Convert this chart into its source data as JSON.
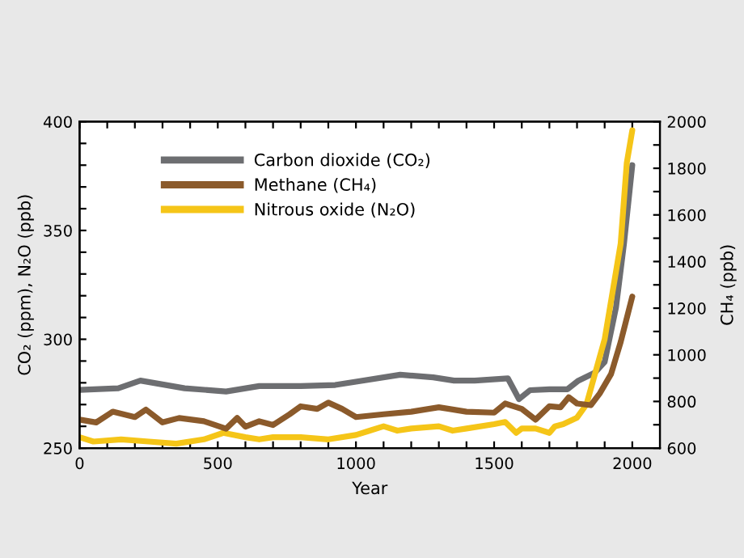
{
  "chart_data": {
    "type": "line",
    "xlabel": "Year",
    "ylabel": "CO₂ (ppm), N₂O (ppb)",
    "y2label": "CH₄ (ppb)",
    "xlim": [
      0,
      2100
    ],
    "xticks": [
      0,
      {
        "value": 100,
        "label": null
      },
      {
        "value": 200,
        "label": null
      },
      {
        "value": 300,
        "label": null
      },
      {
        "value": 400,
        "label": null
      },
      500,
      {
        "value": 600,
        "label": null
      },
      {
        "value": 700,
        "label": null
      },
      {
        "value": 800,
        "label": null
      },
      {
        "value": 900,
        "label": null
      },
      1000,
      {
        "value": 1100,
        "label": null
      },
      {
        "value": 1200,
        "label": null
      },
      {
        "value": 1300,
        "label": null
      },
      {
        "value": 1400,
        "label": null
      },
      1500,
      {
        "value": 1600,
        "label": null
      },
      {
        "value": 1700,
        "label": null
      },
      {
        "value": 1800,
        "label": null
      },
      {
        "value": 1900,
        "label": null
      },
      2000
    ],
    "ylim": [
      250,
      400
    ],
    "yticks": [
      250,
      {
        "value": 260,
        "label": null
      },
      {
        "value": 270,
        "label": null
      },
      {
        "value": 280,
        "label": null
      },
      {
        "value": 290,
        "label": null
      },
      300,
      {
        "value": 310,
        "label": null
      },
      {
        "value": 320,
        "label": null
      },
      {
        "value": 330,
        "label": null
      },
      {
        "value": 340,
        "label": null
      },
      350,
      {
        "value": 360,
        "label": null
      },
      {
        "value": 370,
        "label": null
      },
      {
        "value": 380,
        "label": null
      },
      {
        "value": 390,
        "label": null
      },
      400
    ],
    "y2lim": [
      600,
      2000
    ],
    "y2ticks": [
      600,
      {
        "value": 700,
        "label": null
      },
      800,
      {
        "value": 900,
        "label": null
      },
      1000,
      {
        "value": 1100,
        "label": null
      },
      1200,
      {
        "value": 1300,
        "label": null
      },
      1400,
      {
        "value": 1500,
        "label": null
      },
      1600,
      {
        "value": 1700,
        "label": null
      },
      1800,
      {
        "value": 1900,
        "label": null
      },
      2000
    ],
    "grid": false,
    "legend": "top left",
    "marker": "none",
    "line_style": "solid",
    "series": [
      {
        "name": "Carbon dioxide (CO₂)",
        "color": "#6d6e71",
        "x": [
          0,
          140,
          220,
          380,
          530,
          650,
          800,
          925,
          1000,
          1160,
          1280,
          1355,
          1430,
          1550,
          1590,
          1630,
          1700,
          1765,
          1805,
          1865,
          1900,
          1941,
          1970,
          2000
        ],
        "values": [
          276.7,
          277.5,
          281,
          277.5,
          276,
          278.5,
          278.5,
          279,
          280.5,
          283.7,
          282.5,
          281,
          281,
          282,
          272.5,
          276.6,
          277,
          277,
          281,
          284.7,
          289.6,
          314.6,
          344,
          380
        ]
      },
      {
        "name": "Methane (CH₄)",
        "color": "#8b5a2b",
        "axis": "y2",
        "x": [
          0,
          60,
          120,
          200,
          240,
          300,
          360,
          450,
          530,
          570,
          600,
          650,
          700,
          760,
          800,
          860,
          900,
          950,
          1000,
          1100,
          1200,
          1300,
          1400,
          1500,
          1540,
          1600,
          1650,
          1700,
          1740,
          1770,
          1800,
          1850,
          1882,
          1923,
          1958,
          2000
        ],
        "values": [
          722,
          710,
          756,
          733,
          765,
          710,
          729,
          715,
          683,
          729,
          692,
          715,
          699,
          745,
          779,
          768,
          795,
          768,
          733,
          745,
          756,
          775,
          756,
          752,
          791,
          768,
          722,
          779,
          775,
          818,
          791,
          784,
          834,
          917,
          1055,
          1250
        ]
      },
      {
        "name": "Nitrous oxide (N₂O)",
        "color": "#f5c518",
        "x": [
          0,
          50,
          150,
          250,
          350,
          450,
          520,
          600,
          650,
          700,
          800,
          900,
          1000,
          1050,
          1100,
          1150,
          1200,
          1300,
          1350,
          1400,
          1500,
          1540,
          1580,
          1600,
          1650,
          1700,
          1720,
          1750,
          1800,
          1834,
          1900,
          1958,
          1980,
          2000
        ],
        "values": [
          255,
          253,
          254,
          253,
          252,
          254,
          257,
          255,
          254,
          255,
          255,
          254,
          256,
          258,
          260,
          258,
          259,
          260,
          258,
          259,
          261,
          262,
          257,
          259,
          259,
          257,
          260,
          261,
          264,
          270,
          300,
          344,
          381,
          396
        ]
      }
    ]
  }
}
